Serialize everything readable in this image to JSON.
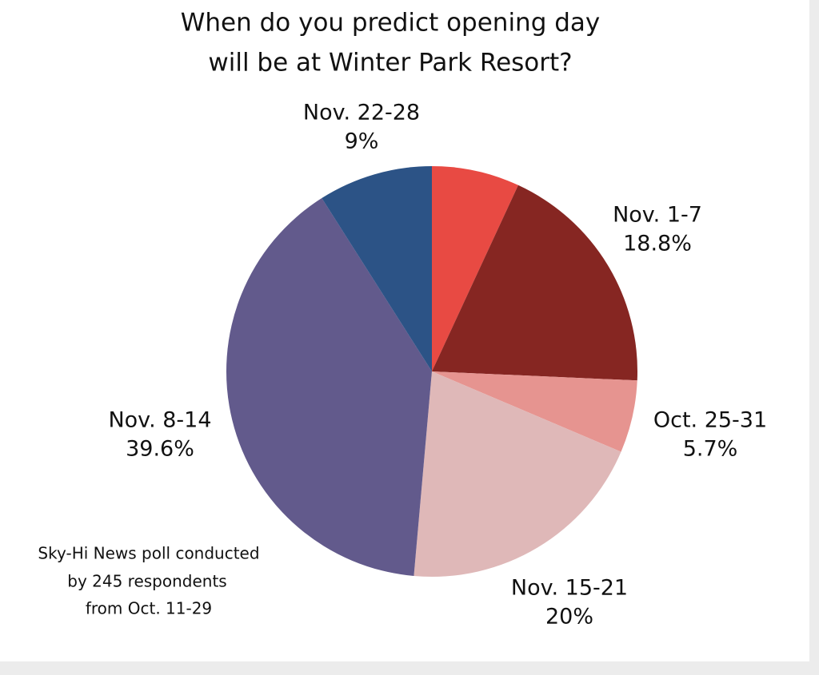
{
  "chart_data": {
    "type": "pie",
    "title": [
      "When do you predict opening day",
      "will be at Winter Park Resort?"
    ],
    "categories": [
      null,
      "Nov. 1-7",
      "Oct. 25-31",
      "Nov. 15-21",
      "Nov. 8-14",
      "Nov. 22-28"
    ],
    "values": [
      6.9,
      18.8,
      5.7,
      20,
      39.6,
      9
    ],
    "value_labels": [
      null,
      "18.8%",
      "5.7%",
      "20%",
      "39.6%",
      "9%"
    ],
    "colors": [
      "#e84a43",
      "#862622",
      "#e69490",
      "#dfb8b8",
      "#625a8c",
      "#2c5386"
    ],
    "note": [
      "Sky-Hi News poll conducted",
      "by 245 respondents",
      "from Oct. 11-29"
    ]
  }
}
